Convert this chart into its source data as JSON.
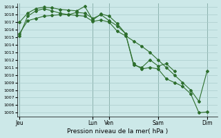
{
  "title": "Pression niveau de la mer( hPa )",
  "bg_color": "#cce8e8",
  "grid_color": "#aacccc",
  "line_color": "#2d6e2d",
  "vline_color": "#4a7a6a",
  "ylim": [
    1004.5,
    1019.5
  ],
  "yticks": [
    1005,
    1006,
    1007,
    1008,
    1009,
    1010,
    1011,
    1012,
    1013,
    1014,
    1015,
    1016,
    1017,
    1018,
    1019
  ],
  "xtick_labels": [
    "Jeu",
    "Lun",
    "Ven",
    "Sam",
    "Dim"
  ],
  "xtick_positions": [
    0,
    9,
    11,
    17,
    23
  ],
  "xlim": [
    -0.3,
    24.3
  ],
  "series1_x": [
    0,
    1,
    2,
    3,
    4,
    5,
    6,
    7,
    8,
    9,
    10,
    11,
    12,
    13,
    14,
    15,
    16,
    17,
    18,
    19,
    20,
    21,
    22,
    23
  ],
  "series1_y": [
    1017.0,
    1018.2,
    1018.8,
    1019.0,
    1018.9,
    1018.7,
    1018.6,
    1018.5,
    1019.1,
    1017.3,
    1018.1,
    1017.8,
    1016.8,
    1015.5,
    1011.3,
    1011.0,
    1012.0,
    1011.2,
    1011.5,
    1010.5,
    null,
    null,
    null,
    null
  ],
  "series2_x": [
    0,
    1,
    2,
    3,
    4,
    5,
    6,
    7,
    8,
    9,
    10,
    11,
    12,
    13,
    14,
    15,
    16,
    17,
    18,
    19,
    20,
    21,
    22,
    23
  ],
  "series2_y": [
    1015.5,
    1017.2,
    1017.5,
    1017.8,
    1017.9,
    1018.0,
    1018.0,
    1017.9,
    1017.8,
    1017.1,
    1017.3,
    1017.0,
    1015.8,
    1015.2,
    1014.5,
    1013.8,
    1013.0,
    1012.0,
    1011.0,
    1010.0,
    1009.0,
    1008.0,
    1006.5,
    1010.5
  ],
  "series3_x": [
    0,
    1,
    2,
    3,
    4,
    5,
    6,
    7,
    8,
    9,
    10,
    11,
    12,
    13,
    14,
    15,
    16,
    17,
    18,
    19,
    20,
    21,
    22,
    23
  ],
  "series3_y": [
    1015.2,
    1017.8,
    1018.5,
    1018.8,
    1018.5,
    1018.2,
    1018.0,
    1018.3,
    1018.2,
    1017.5,
    1018.0,
    1017.2,
    1016.5,
    1015.5,
    1011.5,
    1010.8,
    1011.0,
    1010.8,
    1009.5,
    1009.0,
    1008.5,
    1007.5,
    1005.0,
    1005.1
  ]
}
